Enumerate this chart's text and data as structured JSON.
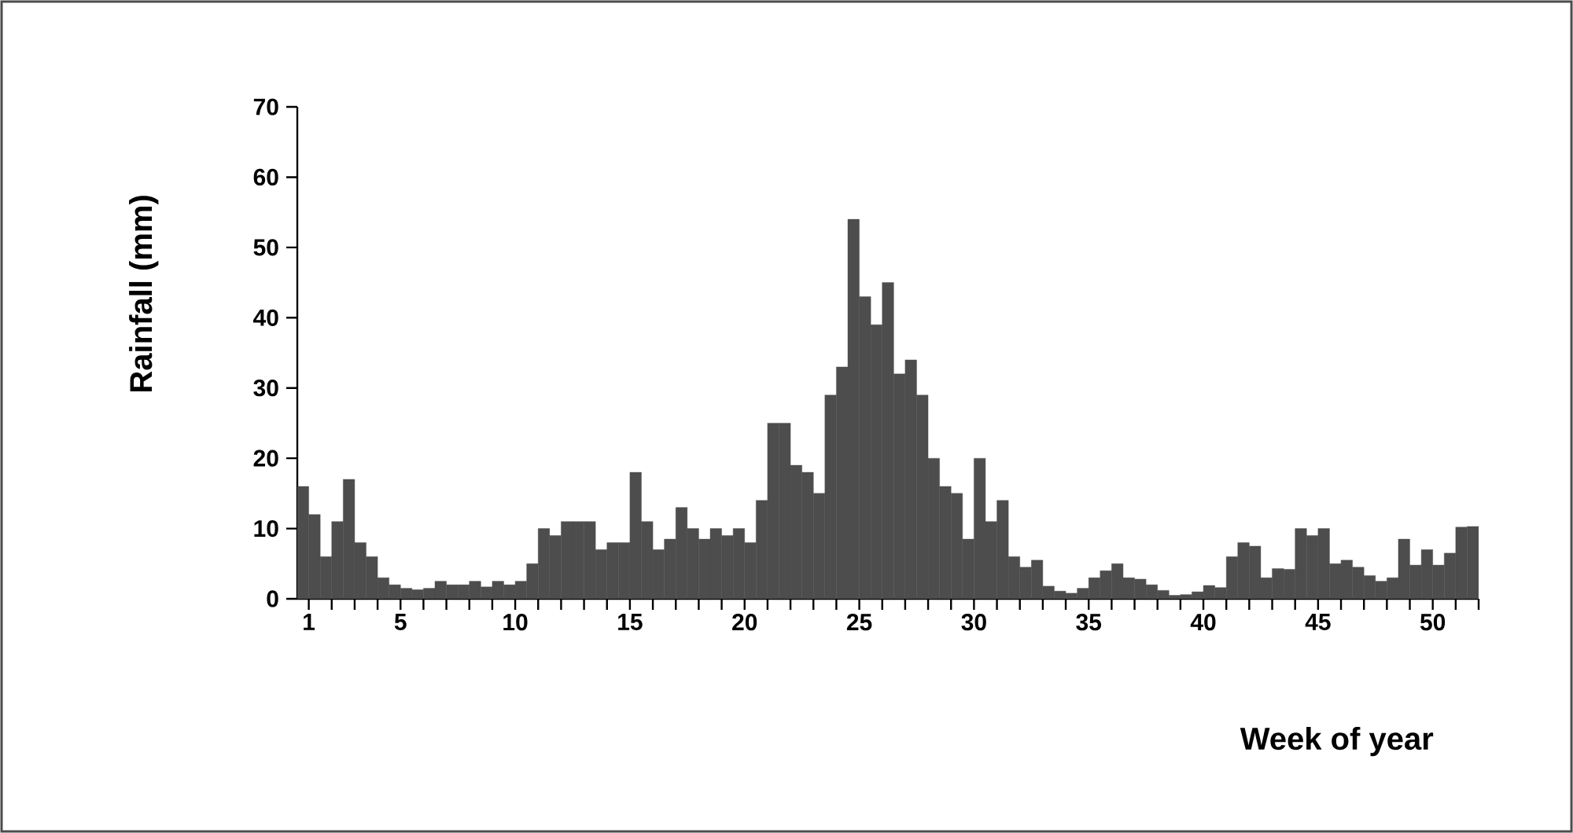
{
  "chart_data": {
    "type": "histogram",
    "xlabel": "Week of year",
    "ylabel": "Rainfall (mm)",
    "color": "#4d4d4d",
    "bins": [
      0.5,
      1,
      1.5,
      2,
      2.5,
      3,
      3.5,
      4,
      4.5,
      5,
      5.5,
      6,
      6.5,
      7,
      7.5,
      8,
      8.5,
      9,
      9.5,
      10,
      10.5,
      11,
      11.5,
      12,
      12.5,
      13,
      13.5,
      14,
      14.5,
      15,
      15.5,
      16,
      16.5,
      17,
      17.5,
      18,
      18.5,
      19,
      19.5,
      20,
      20.5,
      21,
      21.5,
      22,
      22.5,
      23,
      23.5,
      24,
      24.5,
      25,
      25.5,
      26,
      26.5,
      27,
      27.5,
      28,
      28.5,
      29,
      29.5,
      30,
      30.5,
      31,
      31.5,
      32,
      32.5,
      33,
      33.5,
      34,
      34.5,
      35,
      35.5,
      36,
      36.5,
      37,
      37.5,
      38,
      38.5,
      39,
      39.5,
      40,
      40.5,
      41,
      41.5,
      42,
      42.5,
      43,
      43.5,
      44,
      44.5,
      45,
      45.5,
      46,
      46.5,
      47,
      47.5,
      48,
      48.5,
      49,
      49.5,
      50,
      50.5,
      51,
      51.5,
      52
    ],
    "values": [
      16,
      12,
      6,
      11,
      17,
      8,
      6,
      3,
      2,
      1.5,
      1.3,
      1.5,
      2.5,
      2,
      2,
      2.5,
      1.7,
      2.5,
      2,
      2.5,
      5,
      10,
      9,
      11,
      11,
      11,
      7,
      8,
      8,
      18,
      11,
      7,
      8.5,
      13,
      10,
      8.5,
      10,
      9,
      10,
      8,
      14,
      25,
      25,
      19,
      18,
      15,
      29,
      33,
      54,
      43,
      39,
      45,
      32,
      34,
      29,
      20,
      16,
      15,
      8.5,
      20,
      11,
      14,
      6,
      4.5,
      5.5,
      1.8,
      1.1,
      0.8,
      1.5,
      3,
      4,
      5,
      3,
      2.8,
      2,
      1.2,
      0.5,
      0.6,
      1,
      1.9,
      1.6,
      6,
      8,
      7.5,
      3,
      4.3,
      4.2,
      10,
      9,
      10,
      5,
      5.5,
      4.5,
      3.3,
      2.5,
      3,
      8.5,
      4.8,
      7,
      4.8,
      6.5,
      10.2,
      10.3
    ],
    "xlim": [
      0.5,
      52
    ],
    "ylim": [
      0,
      70
    ],
    "xticks": [
      1,
      {
        "value": 2,
        "label": null
      },
      {
        "value": 3,
        "label": null
      },
      {
        "value": 4,
        "label": null
      },
      5,
      {
        "value": 6,
        "label": null
      },
      {
        "value": 7,
        "label": null
      },
      {
        "value": 8,
        "label": null
      },
      {
        "value": 9,
        "label": null
      },
      10,
      {
        "value": 11,
        "label": null
      },
      {
        "value": 12,
        "label": null
      },
      {
        "value": 13,
        "label": null
      },
      {
        "value": 14,
        "label": null
      },
      15,
      {
        "value": 16,
        "label": null
      },
      {
        "value": 17,
        "label": null
      },
      {
        "value": 18,
        "label": null
      },
      {
        "value": 19,
        "label": null
      },
      20,
      {
        "value": 21,
        "label": null
      },
      {
        "value": 22,
        "label": null
      },
      {
        "value": 23,
        "label": null
      },
      {
        "value": 24,
        "label": null
      },
      25,
      {
        "value": 26,
        "label": null
      },
      {
        "value": 27,
        "label": null
      },
      {
        "value": 28,
        "label": null
      },
      {
        "value": 29,
        "label": null
      },
      30,
      {
        "value": 31,
        "label": null
      },
      {
        "value": 32,
        "label": null
      },
      {
        "value": 33,
        "label": null
      },
      {
        "value": 34,
        "label": null
      },
      35,
      {
        "value": 36,
        "label": null
      },
      {
        "value": 37,
        "label": null
      },
      {
        "value": 38,
        "label": null
      },
      {
        "value": 39,
        "label": null
      },
      40,
      {
        "value": 41,
        "label": null
      },
      {
        "value": 42,
        "label": null
      },
      {
        "value": 43,
        "label": null
      },
      {
        "value": 44,
        "label": null
      },
      45,
      {
        "value": 46,
        "label": null
      },
      {
        "value": 47,
        "label": null
      },
      {
        "value": 48,
        "label": null
      },
      {
        "value": 49,
        "label": null
      },
      50,
      {
        "value": 51,
        "label": null
      },
      {
        "value": 52,
        "label": null
      }
    ],
    "yticks": [
      0,
      10,
      20,
      30,
      40,
      50,
      60,
      70
    ],
    "grid": false
  }
}
